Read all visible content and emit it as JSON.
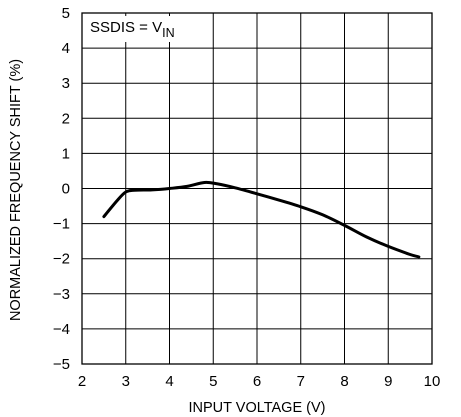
{
  "chart_data": {
    "type": "line",
    "title": "",
    "xlabel": "INPUT VOLTAGE (V)",
    "ylabel": "NORMALIZED FREQUENCY SHIFT (%)",
    "xlim": [
      2,
      10
    ],
    "ylim": [
      -5,
      5
    ],
    "xticks": [
      "2",
      "3",
      "4",
      "5",
      "6",
      "7",
      "8",
      "9",
      "10"
    ],
    "yticks": [
      "5",
      "4",
      "3",
      "2",
      "1",
      "0",
      "−1",
      "−2",
      "−3",
      "−4",
      "−5"
    ],
    "grid": true,
    "annotation": {
      "base": "SSDIS = V",
      "subscript": "IN"
    },
    "series": [
      {
        "x": [
          2.5,
          2.8,
          3.0,
          3.2,
          3.6,
          4.0,
          4.4,
          4.8,
          5.1,
          5.5,
          6.0,
          6.5,
          7.0,
          7.5,
          8.0,
          8.5,
          9.0,
          9.5,
          9.7
        ],
        "y": [
          -0.8,
          -0.35,
          -0.1,
          -0.05,
          -0.04,
          0.0,
          0.06,
          0.17,
          0.13,
          0.02,
          -0.15,
          -0.33,
          -0.52,
          -0.75,
          -1.05,
          -1.38,
          -1.65,
          -1.88,
          -1.95
        ]
      }
    ]
  }
}
